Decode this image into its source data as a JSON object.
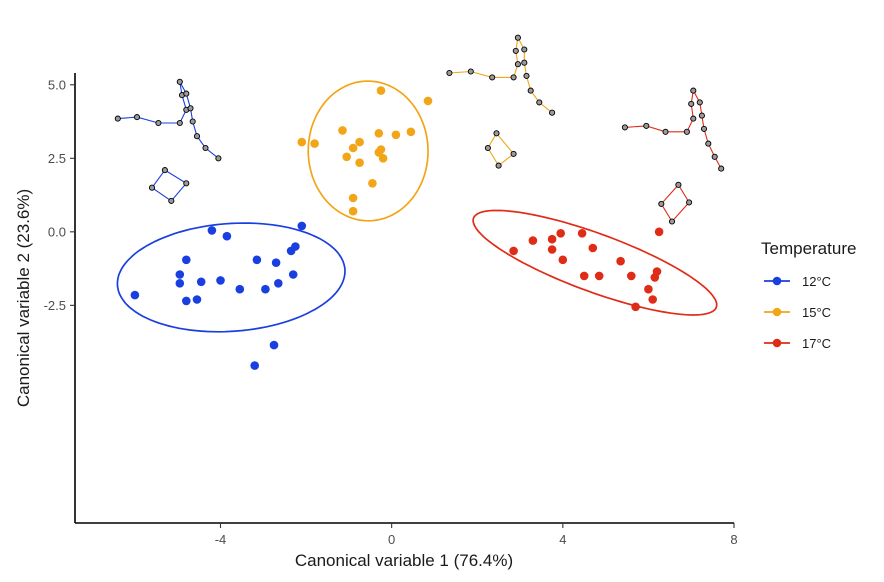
{
  "chart_data": {
    "type": "scatter",
    "xlabel": "Canonical variable 1 (76.4%)",
    "ylabel": "Canonical variable 2 (23.6%)",
    "xlim": [
      -7.4,
      8
    ],
    "ylim": [
      -9.9,
      5.4
    ],
    "x_ticks": [
      -4,
      0,
      4,
      8
    ],
    "x_tick_labels": [
      "-4",
      "0",
      "4",
      "8"
    ],
    "y_ticks": [
      5.0,
      2.5,
      0.0,
      -2.5
    ],
    "y_tick_labels": [
      "5.0",
      "2.5",
      "0.0",
      "-2.5"
    ],
    "grid": false,
    "legend": {
      "title": "Temperature",
      "placement": "right"
    },
    "series": [
      {
        "name": "12°C",
        "color": "#1a3fe0",
        "points": [
          [
            -6.0,
            -2.15
          ],
          [
            -4.95,
            -1.45
          ],
          [
            -4.95,
            -1.75
          ],
          [
            -4.8,
            -0.95
          ],
          [
            -4.8,
            -2.35
          ],
          [
            -4.55,
            -2.3
          ],
          [
            -4.45,
            -1.7
          ],
          [
            -4.2,
            0.05
          ],
          [
            -4.0,
            -1.65
          ],
          [
            -3.85,
            -0.15
          ],
          [
            -3.55,
            -1.95
          ],
          [
            -3.15,
            -0.95
          ],
          [
            -2.95,
            -1.95
          ],
          [
            -2.7,
            -1.05
          ],
          [
            -2.65,
            -1.75
          ],
          [
            -2.35,
            -0.65
          ],
          [
            -2.3,
            -1.45
          ],
          [
            -2.25,
            -0.5
          ],
          [
            -2.1,
            0.2
          ],
          [
            -2.75,
            -3.85
          ],
          [
            -3.2,
            -4.55
          ]
        ],
        "ellipse": {
          "cx": -3.75,
          "cy": -1.55,
          "rx": 5.35,
          "ry": 3.65,
          "angle_deg": 8.5
        }
      },
      {
        "name": "15°C",
        "color": "#f2a516",
        "points": [
          [
            -2.1,
            3.05
          ],
          [
            -1.8,
            3.0
          ],
          [
            -1.15,
            3.45
          ],
          [
            -1.05,
            2.55
          ],
          [
            -0.9,
            2.85
          ],
          [
            -0.9,
            1.15
          ],
          [
            -0.9,
            0.7
          ],
          [
            -0.75,
            3.05
          ],
          [
            -0.75,
            2.35
          ],
          [
            -0.45,
            1.65
          ],
          [
            -0.3,
            3.35
          ],
          [
            -0.3,
            2.7
          ],
          [
            -0.25,
            2.8
          ],
          [
            -0.25,
            4.8
          ],
          [
            -0.2,
            2.5
          ],
          [
            0.1,
            3.3
          ],
          [
            0.45,
            3.4
          ],
          [
            0.85,
            4.45
          ]
        ],
        "ellipse": {
          "cx": -0.55,
          "cy": 2.75,
          "rx": 2.8,
          "ry": 4.75,
          "angle_deg": 0.2
        }
      },
      {
        "name": "17°C",
        "color": "#e02b17",
        "points": [
          [
            2.85,
            -0.65
          ],
          [
            3.3,
            -0.3
          ],
          [
            3.75,
            -0.25
          ],
          [
            3.75,
            -0.6
          ],
          [
            3.95,
            -0.05
          ],
          [
            4.0,
            -0.95
          ],
          [
            4.45,
            -0.05
          ],
          [
            4.5,
            -1.5
          ],
          [
            4.7,
            -0.55
          ],
          [
            4.85,
            -1.5
          ],
          [
            5.35,
            -1.0
          ],
          [
            5.6,
            -1.5
          ],
          [
            5.7,
            -2.55
          ],
          [
            6.0,
            -1.95
          ],
          [
            6.1,
            -2.3
          ],
          [
            6.15,
            -1.55
          ],
          [
            6.2,
            -1.35
          ],
          [
            6.25,
            0.0
          ]
        ],
        "ellipse": {
          "cx": 4.75,
          "cy": -1.05,
          "rx": 6.45,
          "ry": 1.85,
          "angle_deg": -29.4
        }
      }
    ],
    "shape_insets": [
      {
        "series": "12°C",
        "color": "#1a3fe0",
        "chains": [
          [
            [
              -6.4,
              3.85
            ],
            [
              -5.95,
              3.9
            ],
            [
              -5.45,
              3.7
            ],
            [
              -4.95,
              3.7
            ],
            [
              -4.8,
              4.15
            ],
            [
              -4.9,
              4.65
            ],
            [
              -4.95,
              5.1
            ],
            [
              -4.8,
              4.7
            ],
            [
              -4.7,
              4.2
            ],
            [
              -4.65,
              3.75
            ],
            [
              -4.55,
              3.25
            ],
            [
              -4.35,
              2.85
            ],
            [
              -4.05,
              2.5
            ]
          ],
          [
            [
              -5.3,
              2.1
            ],
            [
              -5.6,
              1.5
            ],
            [
              -5.15,
              1.05
            ],
            [
              -4.8,
              1.65
            ],
            [
              -5.3,
              2.1
            ]
          ]
        ]
      },
      {
        "series": "15°C",
        "color": "#f2a516",
        "chains": [
          [
            [
              1.35,
              5.4
            ],
            [
              1.85,
              5.45
            ],
            [
              2.35,
              5.25
            ],
            [
              2.85,
              5.25
            ],
            [
              2.95,
              5.7
            ],
            [
              2.9,
              6.15
            ],
            [
              2.95,
              6.6
            ],
            [
              3.1,
              6.2
            ],
            [
              3.1,
              5.75
            ],
            [
              3.15,
              5.3
            ],
            [
              3.25,
              4.8
            ],
            [
              3.45,
              4.4
            ],
            [
              3.75,
              4.05
            ]
          ],
          [
            [
              2.45,
              3.35
            ],
            [
              2.25,
              2.85
            ],
            [
              2.5,
              2.25
            ],
            [
              2.85,
              2.65
            ],
            [
              2.45,
              3.35
            ]
          ]
        ]
      },
      {
        "series": "17°C",
        "color": "#e02b17",
        "chains": [
          [
            [
              5.45,
              3.55
            ],
            [
              5.95,
              3.6
            ],
            [
              6.4,
              3.4
            ],
            [
              6.9,
              3.4
            ],
            [
              7.05,
              3.85
            ],
            [
              7.0,
              4.35
            ],
            [
              7.05,
              4.8
            ],
            [
              7.2,
              4.4
            ],
            [
              7.25,
              3.95
            ],
            [
              7.3,
              3.5
            ],
            [
              7.4,
              3.0
            ],
            [
              7.55,
              2.55
            ],
            [
              7.7,
              2.15
            ]
          ],
          [
            [
              6.7,
              1.6
            ],
            [
              6.3,
              0.95
            ],
            [
              6.55,
              0.35
            ],
            [
              6.95,
              1.0
            ],
            [
              6.7,
              1.6
            ]
          ]
        ]
      }
    ]
  }
}
